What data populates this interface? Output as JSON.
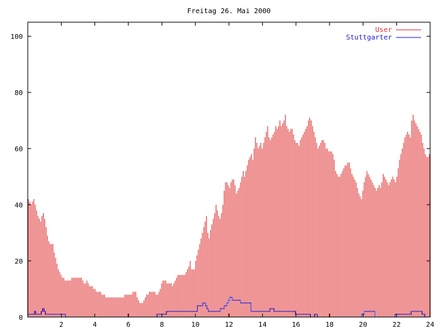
{
  "chart_data": {
    "type": "bar",
    "title": "Freitag 26. Mai 2000",
    "xlabel": "",
    "ylabel": "",
    "xlim": [
      0,
      24
    ],
    "ylim": [
      0,
      105
    ],
    "x_ticks": [
      2,
      4,
      6,
      8,
      10,
      12,
      14,
      16,
      18,
      20,
      22,
      24
    ],
    "y_ticks": [
      0,
      20,
      40,
      60,
      80,
      100
    ],
    "grid": false,
    "legend_position": "top-right",
    "x_step_hours": 0.0833,
    "series": [
      {
        "name": "User",
        "style": "impulses",
        "color": "#e03030",
        "values": [
          42,
          41,
          40,
          41,
          42,
          40,
          38,
          36,
          35,
          34,
          36,
          37,
          35,
          32,
          29,
          27,
          26,
          26,
          26,
          23,
          21,
          19,
          17,
          16,
          15,
          14,
          14,
          13,
          13,
          13,
          13,
          13,
          14,
          14,
          14,
          14,
          14,
          14,
          14,
          14,
          13,
          12,
          12,
          13,
          12,
          11,
          11,
          11,
          10,
          10,
          9,
          9,
          9,
          9,
          8,
          8,
          8,
          7,
          7,
          7,
          7,
          7,
          7,
          7,
          7,
          7,
          7,
          7,
          7,
          7,
          7,
          8,
          8,
          8,
          8,
          8,
          8,
          9,
          9,
          9,
          7,
          6,
          5,
          5,
          5,
          6,
          7,
          8,
          8,
          9,
          9,
          9,
          9,
          9,
          8,
          8,
          9,
          10,
          12,
          13,
          13,
          13,
          12,
          12,
          12,
          12,
          11,
          12,
          13,
          14,
          15,
          15,
          15,
          15,
          15,
          15,
          16,
          17,
          18,
          20,
          17,
          17,
          17,
          20,
          22,
          24,
          26,
          28,
          30,
          32,
          34,
          36,
          30,
          28,
          31,
          33,
          35,
          37,
          40,
          38,
          36,
          35,
          37,
          40,
          45,
          48,
          48,
          47,
          46,
          48,
          49,
          49,
          47,
          44,
          45,
          46,
          48,
          50,
          52,
          50,
          52,
          54,
          56,
          57,
          58,
          56,
          60,
          64,
          62,
          60,
          61,
          62,
          60,
          62,
          64,
          66,
          68,
          64,
          63,
          64,
          65,
          66,
          68,
          67,
          68,
          70,
          68,
          69,
          70,
          72,
          68,
          67,
          66,
          67,
          67,
          65,
          63,
          62,
          62,
          61,
          63,
          64,
          65,
          66,
          67,
          68,
          70,
          71,
          70,
          68,
          66,
          64,
          62,
          60,
          61,
          62,
          63,
          63,
          62,
          60,
          60,
          59,
          59,
          59,
          58,
          56,
          52,
          51,
          50,
          50,
          51,
          52,
          53,
          54,
          54,
          55,
          55,
          53,
          51,
          50,
          49,
          48,
          46,
          44,
          43,
          42,
          45,
          48,
          50,
          52,
          51,
          50,
          49,
          48,
          47,
          46,
          45,
          46,
          47,
          46,
          48,
          51,
          50,
          49,
          48,
          47,
          48,
          49,
          50,
          49,
          48,
          50,
          53,
          56,
          58,
          60,
          62,
          64,
          65,
          66,
          65,
          64,
          70,
          72,
          70,
          69,
          68,
          67,
          66,
          65,
          62,
          60,
          58,
          57,
          57,
          58
        ]
      },
      {
        "name": "Stuttgarter",
        "style": "line",
        "color": "#2020d0",
        "values": [
          1,
          1,
          1,
          1,
          1,
          2,
          1,
          1,
          1,
          1,
          2,
          3,
          2,
          1,
          1,
          1,
          1,
          1,
          1,
          1,
          1,
          1,
          1,
          1,
          1,
          1,
          1,
          1,
          0,
          0,
          0,
          0,
          0,
          0,
          0,
          0,
          0,
          0,
          0,
          0,
          0,
          0,
          0,
          0,
          0,
          0,
          0,
          0,
          0,
          0,
          0,
          0,
          0,
          0,
          0,
          0,
          0,
          0,
          0,
          0,
          0,
          0,
          0,
          0,
          0,
          0,
          0,
          0,
          0,
          0,
          0,
          0,
          0,
          0,
          0,
          0,
          0,
          0,
          0,
          0,
          0,
          0,
          0,
          0,
          0,
          0,
          0,
          0,
          0,
          0,
          0,
          0,
          0,
          0,
          0,
          0,
          1,
          1,
          1,
          1,
          1,
          1,
          1,
          2,
          2,
          2,
          2,
          2,
          2,
          2,
          2,
          2,
          2,
          2,
          2,
          2,
          2,
          2,
          2,
          2,
          2,
          2,
          2,
          2,
          2,
          2,
          4,
          4,
          4,
          4,
          5,
          5,
          4,
          3,
          2,
          2,
          2,
          2,
          2,
          2,
          2,
          2,
          2,
          3,
          3,
          3,
          4,
          4,
          5,
          6,
          7,
          7,
          6,
          6,
          6,
          6,
          6,
          6,
          5,
          5,
          5,
          5,
          5,
          5,
          5,
          5,
          2,
          2,
          2,
          2,
          2,
          2,
          2,
          2,
          2,
          2,
          2,
          2,
          2,
          2,
          3,
          3,
          3,
          2,
          2,
          2,
          2,
          2,
          2,
          2,
          2,
          2,
          2,
          2,
          2,
          2,
          2,
          2,
          2,
          1,
          1,
          1,
          1,
          1,
          1,
          1,
          1,
          1,
          1,
          1,
          0,
          0,
          0,
          1,
          1,
          0,
          0,
          0,
          0,
          0,
          0,
          0,
          0,
          0,
          0,
          0,
          0,
          0,
          0,
          0,
          0,
          0,
          0,
          0,
          0,
          0,
          0,
          0,
          0,
          0,
          0,
          0,
          0,
          0,
          0,
          0,
          0,
          0,
          1,
          1,
          2,
          2,
          2,
          2,
          2,
          2,
          2,
          2,
          0,
          0,
          0,
          0,
          0,
          0,
          0,
          0,
          0,
          0,
          0,
          0,
          0,
          0,
          0,
          1,
          1,
          1,
          1,
          1,
          1,
          1,
          1,
          1,
          1,
          1,
          1,
          2,
          2,
          2,
          2,
          2,
          2,
          2,
          2,
          1,
          1,
          0,
          0,
          0,
          0
        ]
      }
    ]
  }
}
